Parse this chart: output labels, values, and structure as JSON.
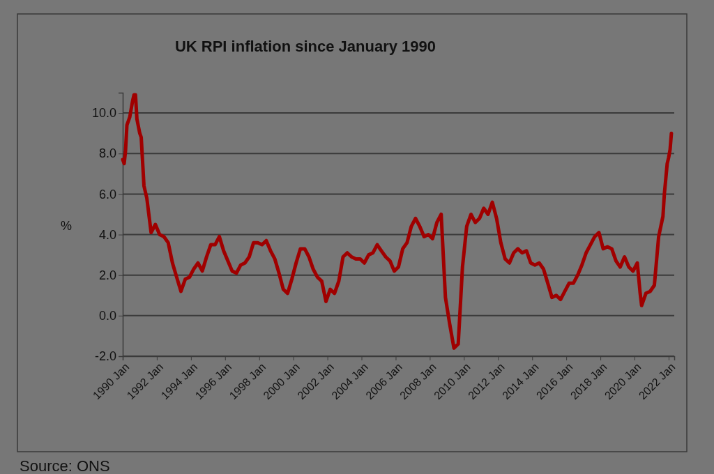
{
  "chart_data": {
    "type": "line",
    "title": "UK RPI inflation since January 1990",
    "ylabel": "%",
    "annotations": [
      "Source: ONS"
    ],
    "x": [
      "1990-01",
      "1990-02",
      "1990-03",
      "1990-04",
      "1990-06",
      "1990-08",
      "1990-09",
      "1990-10",
      "1990-11",
      "1991-01",
      "1991-02",
      "1991-04",
      "1991-06",
      "1991-09",
      "1991-12",
      "1992-03",
      "1992-06",
      "1992-09",
      "1992-12",
      "1993-03",
      "1993-06",
      "1993-09",
      "1993-12",
      "1994-03",
      "1994-06",
      "1994-09",
      "1994-12",
      "1995-03",
      "1995-06",
      "1995-09",
      "1995-12",
      "1996-03",
      "1996-06",
      "1996-09",
      "1996-12",
      "1997-03",
      "1997-06",
      "1997-09",
      "1997-12",
      "1998-03",
      "1998-06",
      "1998-09",
      "1998-12",
      "1999-03",
      "1999-06",
      "1999-09",
      "1999-12",
      "2000-03",
      "2000-06",
      "2000-09",
      "2000-12",
      "2001-03",
      "2001-06",
      "2001-09",
      "2001-12",
      "2002-03",
      "2002-06",
      "2002-09",
      "2002-12",
      "2003-03",
      "2003-06",
      "2003-09",
      "2003-12",
      "2004-03",
      "2004-06",
      "2004-09",
      "2004-12",
      "2005-03",
      "2005-06",
      "2005-09",
      "2005-12",
      "2006-03",
      "2006-06",
      "2006-09",
      "2006-12",
      "2007-03",
      "2007-06",
      "2007-09",
      "2007-12",
      "2008-03",
      "2008-06",
      "2008-09",
      "2008-12",
      "2009-03",
      "2009-06",
      "2009-09",
      "2009-12",
      "2010-03",
      "2010-06",
      "2010-09",
      "2010-12",
      "2011-03",
      "2011-06",
      "2011-09",
      "2011-12",
      "2012-03",
      "2012-06",
      "2012-09",
      "2012-12",
      "2013-03",
      "2013-06",
      "2013-09",
      "2013-12",
      "2014-03",
      "2014-06",
      "2014-09",
      "2014-12",
      "2015-03",
      "2015-06",
      "2015-09",
      "2015-12",
      "2016-03",
      "2016-06",
      "2016-09",
      "2016-12",
      "2017-03",
      "2017-06",
      "2017-09",
      "2017-12",
      "2018-03",
      "2018-06",
      "2018-09",
      "2018-12",
      "2019-03",
      "2019-06",
      "2019-09",
      "2019-12",
      "2020-03",
      "2020-05",
      "2020-06",
      "2020-09",
      "2020-12",
      "2021-03",
      "2021-06",
      "2021-09",
      "2021-10",
      "2021-12",
      "2022-01",
      "2022-02",
      "2022-03"
    ],
    "series": [
      {
        "color": "#a00000",
        "values": [
          7.7,
          7.5,
          8.1,
          9.4,
          9.8,
          10.6,
          10.9,
          10.9,
          9.7,
          9.0,
          8.8,
          6.4,
          5.8,
          4.1,
          4.5,
          4.0,
          3.9,
          3.6,
          2.6,
          1.9,
          1.2,
          1.8,
          1.9,
          2.3,
          2.6,
          2.2,
          2.9,
          3.5,
          3.5,
          3.9,
          3.2,
          2.7,
          2.2,
          2.1,
          2.5,
          2.6,
          2.9,
          3.6,
          3.6,
          3.5,
          3.7,
          3.2,
          2.8,
          2.1,
          1.3,
          1.1,
          1.8,
          2.6,
          3.3,
          3.3,
          2.9,
          2.3,
          1.9,
          1.7,
          0.7,
          1.3,
          1.1,
          1.7,
          2.9,
          3.1,
          2.9,
          2.8,
          2.8,
          2.6,
          3.0,
          3.1,
          3.5,
          3.2,
          2.9,
          2.7,
          2.2,
          2.4,
          3.3,
          3.6,
          4.4,
          4.8,
          4.4,
          3.9,
          4.0,
          3.8,
          4.6,
          5.0,
          0.9,
          -0.4,
          -1.6,
          -1.4,
          2.4,
          4.4,
          5.0,
          4.6,
          4.8,
          5.3,
          5.0,
          5.6,
          4.8,
          3.6,
          2.8,
          2.6,
          3.1,
          3.3,
          3.1,
          3.2,
          2.6,
          2.5,
          2.6,
          2.3,
          1.6,
          0.9,
          1.0,
          0.8,
          1.2,
          1.6,
          1.6,
          2.0,
          2.5,
          3.1,
          3.5,
          3.9,
          4.1,
          3.3,
          3.4,
          3.3,
          2.7,
          2.4,
          2.9,
          2.4,
          2.2,
          2.6,
          1.1,
          0.5,
          1.1,
          1.2,
          1.5,
          3.9,
          4.9,
          6.0,
          7.5,
          7.8,
          8.2,
          9.0
        ]
      }
    ],
    "xlim": [
      "1990-01",
      "2022-05"
    ],
    "xticks": [
      {
        "value": "1990-01",
        "label": "1990 Jan"
      },
      {
        "value": "1992-01",
        "label": "1992 Jan"
      },
      {
        "value": "1994-01",
        "label": "1994 Jan"
      },
      {
        "value": "1996-01",
        "label": "1996 Jan"
      },
      {
        "value": "1998-01",
        "label": "1998 Jan"
      },
      {
        "value": "2000-01",
        "label": "2000 Jan"
      },
      {
        "value": "2002-01",
        "label": "2002 Jan"
      },
      {
        "value": "2004-01",
        "label": "2004 Jan"
      },
      {
        "value": "2006-01",
        "label": "2006 Jan"
      },
      {
        "value": "2008-01",
        "label": "2008 Jan"
      },
      {
        "value": "2010-01",
        "label": "2010 Jan"
      },
      {
        "value": "2012-01",
        "label": "2012 Jan"
      },
      {
        "value": "2014-01",
        "label": "2014 Jan"
      },
      {
        "value": "2016-01",
        "label": "2016 Jan"
      },
      {
        "value": "2018-01",
        "label": "2018 Jan"
      },
      {
        "value": "2020-01",
        "label": "2020 Jan"
      },
      {
        "value": "2022-01",
        "label": "2022 Jan"
      }
    ],
    "ylim": [
      -2,
      11
    ],
    "yticks": [
      {
        "value": -2,
        "label": "-2.0"
      },
      {
        "value": 0,
        "label": "0.0"
      },
      {
        "value": 2,
        "label": "2.0"
      },
      {
        "value": 4,
        "label": "4.0"
      },
      {
        "value": 6,
        "label": "6.0"
      },
      {
        "value": 8,
        "label": "8.0"
      },
      {
        "value": 10,
        "label": "10.0"
      }
    ],
    "grid": "y",
    "marker": "none",
    "line_style": "solid"
  }
}
